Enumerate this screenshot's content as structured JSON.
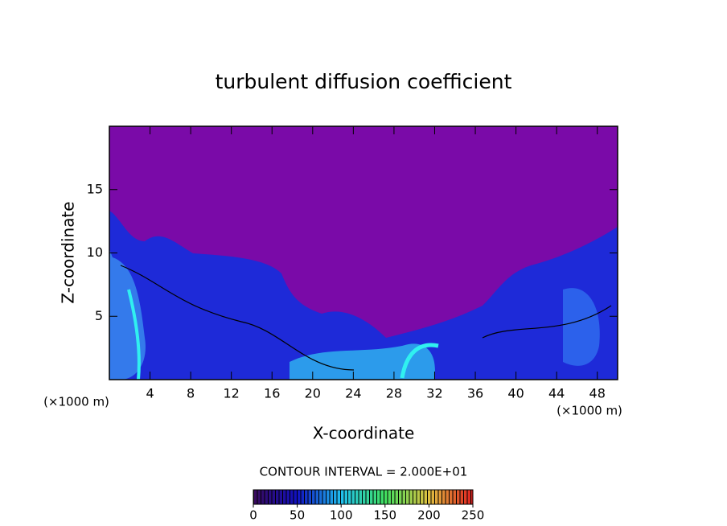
{
  "chart_data": {
    "type": "contour",
    "title": "turbulent diffusion coefficient",
    "x_label": "X-coordinate",
    "y_label": "Z-coordinate",
    "x_unit": "(×1000 m)",
    "y_unit": "(×1000 m)",
    "xlim": [
      0,
      50
    ],
    "xticks": [
      4,
      8,
      12,
      16,
      20,
      24,
      28,
      32,
      36,
      40,
      44,
      48
    ],
    "ylim": [
      0,
      20
    ],
    "yticks": [
      5,
      10,
      15
    ],
    "colorbar_label": "CONTOUR INTERVAL = 2.000E+01",
    "colorbar_lim": [
      0,
      250
    ],
    "colorbar_ticks": [
      0,
      50,
      100,
      150,
      200,
      250
    ]
  }
}
